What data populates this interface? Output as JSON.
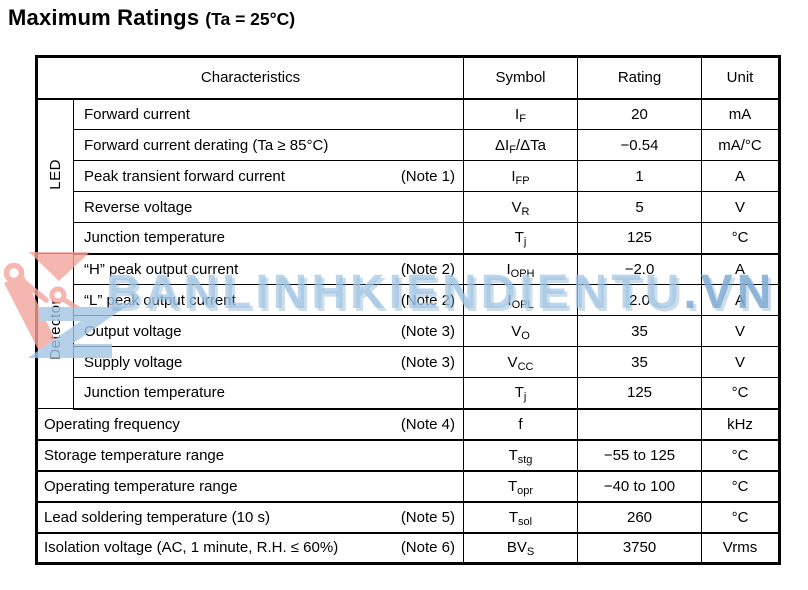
{
  "title": {
    "main": "Maximum Ratings",
    "condition": "(Ta = 25°C)"
  },
  "table": {
    "headers": {
      "characteristics": "Characteristics",
      "symbol": "Symbol",
      "rating": "Rating",
      "unit": "Unit"
    },
    "rows": [
      {
        "group": "LED",
        "group_span": 5,
        "grouped": true,
        "characteristic": "Forward current",
        "note": "",
        "symbol": "I_{F}",
        "rating": "20",
        "unit": "mA"
      },
      {
        "grouped": true,
        "characteristic": "Forward current derating (Ta ≥ 85°C)",
        "note": "",
        "symbol": "ΔI_{F}/ΔTa",
        "rating": "−0.54",
        "unit": "mA/°C"
      },
      {
        "grouped": true,
        "characteristic": "Peak transient forward current",
        "note": "(Note 1)",
        "symbol": "I_{FP}",
        "rating": "1",
        "unit": "A"
      },
      {
        "grouped": true,
        "characteristic": "Reverse voltage",
        "note": "",
        "symbol": "V_{R}",
        "rating": "5",
        "unit": "V"
      },
      {
        "grouped": true,
        "characteristic": "Junction temperature",
        "note": "",
        "symbol": "T_{j}",
        "rating": "125",
        "unit": "°C",
        "group_end": true
      },
      {
        "group": "Detector",
        "group_span": 5,
        "grouped": true,
        "characteristic": "“H” peak output current",
        "note": "(Note 2)",
        "symbol": "I_{OPH}",
        "rating": "−2.0",
        "unit": "A"
      },
      {
        "grouped": true,
        "characteristic": "“L” peak output current",
        "note": "(Note 2)",
        "symbol": "I_{OPL}",
        "rating": "2.0",
        "unit": "A"
      },
      {
        "grouped": true,
        "characteristic": "Output voltage",
        "note": "(Note 3)",
        "symbol": "V_{O}",
        "rating": "35",
        "unit": "V"
      },
      {
        "grouped": true,
        "characteristic": "Supply voltage",
        "note": "(Note 3)",
        "symbol": "V_{CC}",
        "rating": "35",
        "unit": "V"
      },
      {
        "grouped": true,
        "characteristic": "Junction temperature",
        "note": "",
        "symbol": "T_{j}",
        "rating": "125",
        "unit": "°C",
        "group_end": true
      },
      {
        "characteristic": "Operating frequency",
        "note": "(Note 4)",
        "symbol": "f",
        "rating": "",
        "unit": "kHz",
        "group_end": true
      },
      {
        "characteristic": "Storage temperature range",
        "note": "",
        "symbol": "T_{stg}",
        "rating": "−55 to 125",
        "unit": "°C",
        "group_end": true
      },
      {
        "characteristic": "Operating temperature range",
        "note": "",
        "symbol": "T_{opr}",
        "rating": "−40 to 100",
        "unit": "°C",
        "group_end": true
      },
      {
        "characteristic": "Lead soldering temperature (10 s)",
        "note": "(Note 5)",
        "symbol": "T_{sol}",
        "rating": "260",
        "unit": "°C",
        "group_end": true
      },
      {
        "characteristic": "Isolation voltage (AC, 1 minute, R.H. ≤ 60%)",
        "note": "(Note 6)",
        "symbol": "BV_{S}",
        "rating": "3750",
        "unit": "Vrms"
      }
    ]
  },
  "watermark": {
    "text_main": "BANLINHKIENDIENTU",
    "text_suffix": ".VN",
    "text_color": "#a3c7e5",
    "logo_pink": "#f4a59d",
    "logo_blue": "#9cc2e2"
  },
  "colors": {
    "text": "#000000",
    "background": "#ffffff",
    "border": "#000000"
  }
}
